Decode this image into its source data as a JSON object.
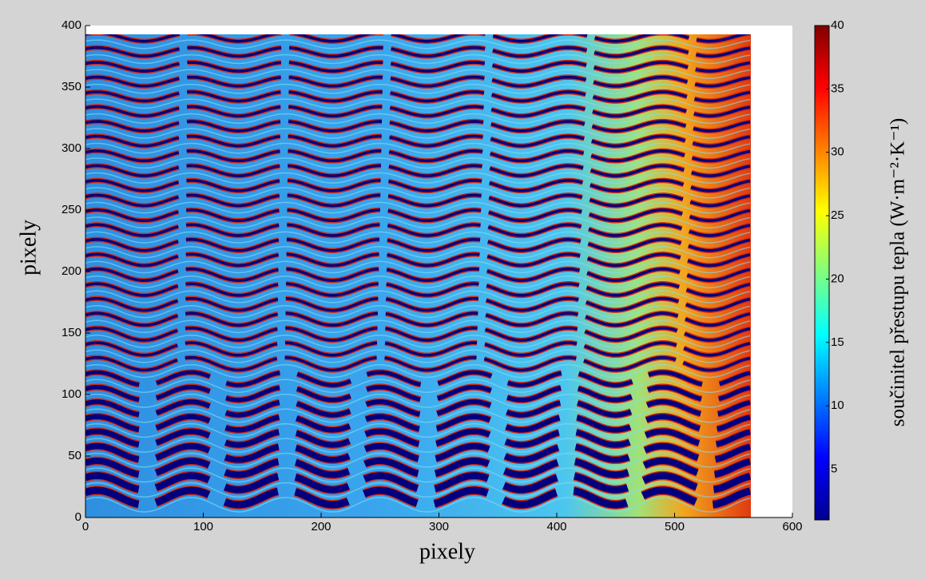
{
  "chart_data": {
    "type": "heatmap",
    "xlabel": "pixely",
    "ylabel": "pixely",
    "xlim": [
      0,
      600
    ],
    "ylim": [
      0,
      400
    ],
    "xticks": [
      0,
      100,
      200,
      300,
      400,
      500,
      600
    ],
    "yticks": [
      0,
      50,
      100,
      150,
      200,
      250,
      300,
      350,
      400
    ],
    "colorbar": {
      "label": "součinitel přestupu tepla (W·m⁻²·K⁻¹)",
      "lim": [
        1,
        40
      ],
      "ticks": [
        5,
        10,
        15,
        20,
        25,
        30,
        35,
        40
      ],
      "colormap": "jet"
    }
  }
}
